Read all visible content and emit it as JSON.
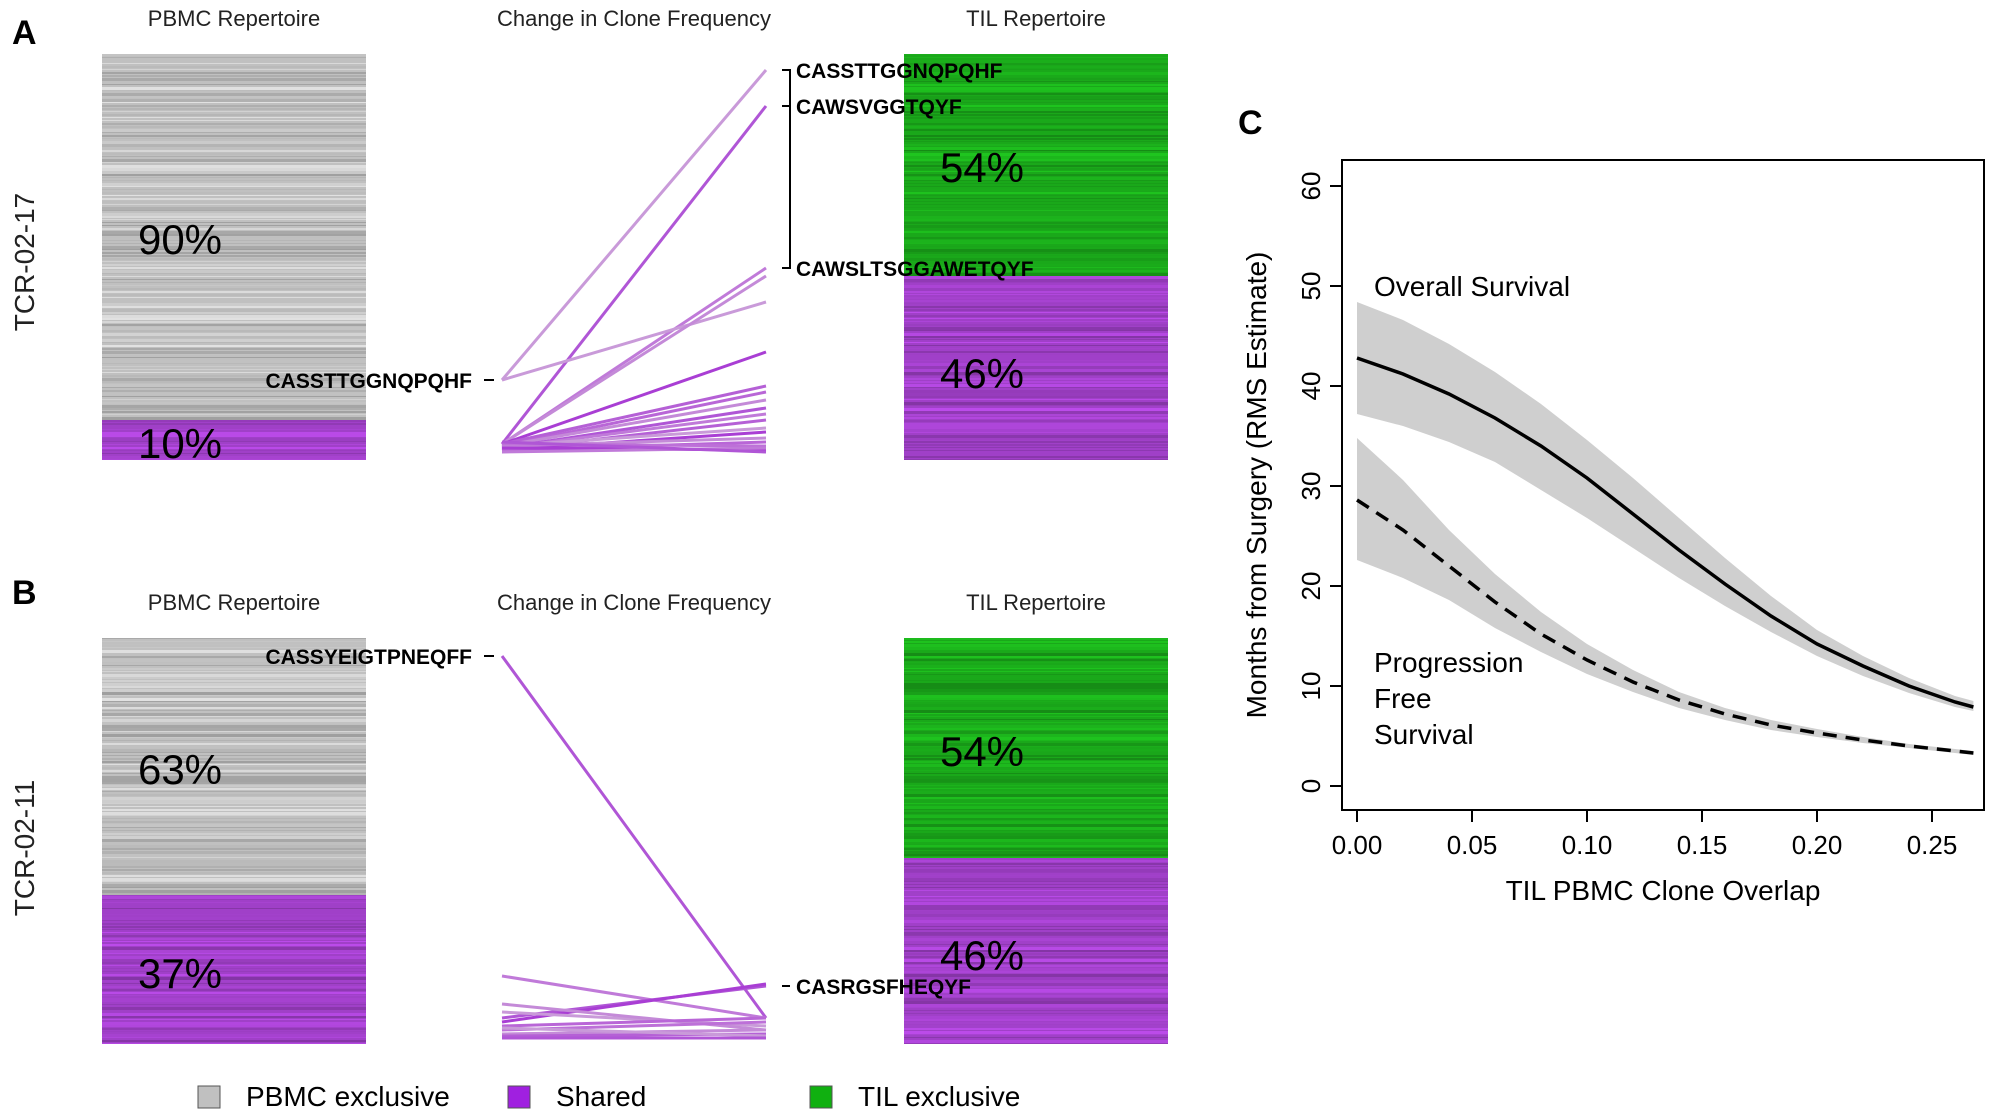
{
  "colors": {
    "pbmc_exclusive": "#c0c0c0",
    "shared": "#a040c8",
    "til_exclusive": "#1aa81a"
  },
  "panels": {
    "A": {
      "letter": "A",
      "row_label": "TCR-02-17",
      "pbmc_title": "PBMC Repertoire",
      "change_title": "Change in Clone Frequency",
      "til_title": "TIL Repertoire",
      "pbmc_pct_exclusive": "90%",
      "pbmc_pct_shared": "10%",
      "til_pct_exclusive": "54%",
      "til_pct_shared": "46%",
      "pbmc_exclusive_fraction": 0.9,
      "til_exclusive_fraction": 0.54,
      "pbmc_clone_label": "CASSTTGGNQPQHF",
      "til_clone_labels": [
        "CASSTTGGNQPQHF",
        "CAWSVGGTQYF",
        "CAWSLTSGGAWETQYF"
      ]
    },
    "B": {
      "letter": "B",
      "row_label": "TCR-02-11",
      "pbmc_title": "PBMC Repertoire",
      "change_title": "Change in Clone Frequency",
      "til_title": "TIL Repertoire",
      "pbmc_pct_exclusive": "63%",
      "pbmc_pct_shared": "37%",
      "til_pct_exclusive": "54%",
      "til_pct_shared": "46%",
      "pbmc_exclusive_fraction": 0.63,
      "til_exclusive_fraction": 0.54,
      "pbmc_clone_label": "CASSYEIGTPNEQFF",
      "til_clone_labels": [
        "CASRGSFHEQYF"
      ]
    }
  },
  "legend": {
    "items": [
      {
        "label": "PBMC exclusive",
        "color": "#c0c0c0"
      },
      {
        "label": "Shared",
        "color": "#a020e0"
      },
      {
        "label": "TIL exclusive",
        "color": "#10b010"
      }
    ]
  },
  "chart_data": {
    "type": "line",
    "letter": "C",
    "xlabel": "TIL PBMC Clone Overlap",
    "ylabel": "Months from Surgery (RMS Estimate)",
    "xlim": [
      0.0,
      0.27
    ],
    "ylim": [
      0,
      60
    ],
    "x_ticks": [
      "0.00",
      "0.05",
      "0.10",
      "0.15",
      "0.20",
      "0.25"
    ],
    "y_ticks": [
      "0",
      "10",
      "20",
      "30",
      "40",
      "50",
      "60"
    ],
    "annotations": [
      "Overall Survival",
      "Progression",
      "Free",
      "Survival"
    ],
    "series": [
      {
        "name": "Overall Survival",
        "style": "solid",
        "x": [
          0.0,
          0.02,
          0.04,
          0.06,
          0.08,
          0.1,
          0.12,
          0.14,
          0.16,
          0.18,
          0.2,
          0.22,
          0.24,
          0.26,
          0.268
        ],
        "y": [
          42.8,
          41.2,
          39.2,
          36.8,
          34.0,
          30.8,
          27.2,
          23.6,
          20.2,
          17.0,
          14.2,
          12.0,
          10.0,
          8.4,
          7.9
        ],
        "lower": [
          37.2,
          36.0,
          34.4,
          32.4,
          29.6,
          26.8,
          23.8,
          20.8,
          18.0,
          15.4,
          13.0,
          11.0,
          9.3,
          7.9,
          7.5
        ],
        "upper": [
          48.4,
          46.6,
          44.2,
          41.4,
          38.2,
          34.6,
          30.8,
          26.8,
          22.8,
          19.0,
          15.6,
          13.0,
          10.8,
          9.0,
          8.5
        ]
      },
      {
        "name": "Progression Free Survival",
        "style": "dashed",
        "x": [
          0.0,
          0.02,
          0.04,
          0.06,
          0.08,
          0.1,
          0.12,
          0.14,
          0.16,
          0.18,
          0.2,
          0.22,
          0.24,
          0.26,
          0.268
        ],
        "y": [
          28.6,
          25.6,
          22.0,
          18.4,
          15.2,
          12.6,
          10.4,
          8.6,
          7.2,
          6.1,
          5.3,
          4.6,
          4.0,
          3.5,
          3.3
        ],
        "lower": [
          22.6,
          20.8,
          18.6,
          15.8,
          13.4,
          11.2,
          9.4,
          7.8,
          6.6,
          5.6,
          4.9,
          4.3,
          3.8,
          3.3,
          3.1
        ],
        "upper": [
          34.8,
          30.6,
          25.6,
          21.2,
          17.4,
          14.2,
          11.6,
          9.4,
          7.8,
          6.6,
          5.7,
          4.9,
          4.2,
          3.7,
          3.5
        ]
      }
    ]
  }
}
